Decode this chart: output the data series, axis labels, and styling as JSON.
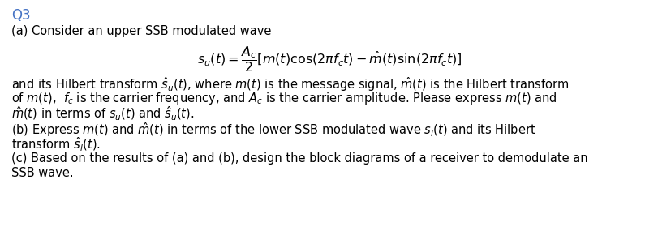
{
  "bg_color": "#ffffff",
  "title": "Q3",
  "title_color": "#4472c4",
  "title_fontsize": 12,
  "body_fontsize": 10.5,
  "math_fontsize": 11.5,
  "fig_width": 8.12,
  "fig_height": 3.06,
  "dpi": 100,
  "line_a": "(a) Consider an upper SSB modulated wave",
  "formula": "$s_u(t) = \\dfrac{A_c}{2}[m(t)\\cos(2\\pi f_c t) - \\hat{m}(t)\\sin(2\\pi f_c t)]$",
  "line_b1": "and its Hilbert transform $\\hat{s}_u(t)$, where $m(t)$ is the message signal, $\\hat{m}(t)$ is the Hilbert transform",
  "line_b2": "of $m(t)$,  $f_c$ is the carrier frequency, and $A_c$ is the carrier amplitude. Please express $m(t)$ and",
  "line_b3": "$\\hat{m}(t)$ in terms of $s_u(t)$ and $\\hat{s}_u(t)$.",
  "line_c1": "(b) Express $m(t)$ and $\\hat{m}(t)$ in terms of the lower SSB modulated wave $s_l(t)$ and its Hilbert",
  "line_c2": "transform $\\hat{s}_l(t)$.",
  "line_d1": "(c) Based on the results of (a) and (b), design the block diagrams of a receiver to demodulate an",
  "line_d2": "SSB wave."
}
